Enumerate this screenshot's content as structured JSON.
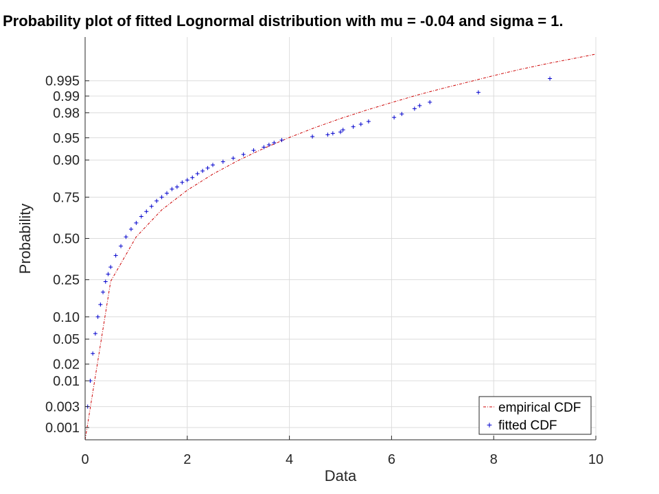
{
  "chart_data": {
    "type": "scatter",
    "title": "Probability plot of fitted Lognormal distribution with mu = -0.04 and sigma = 1.",
    "xlabel": "Data",
    "ylabel": "Probability",
    "xlim": [
      0,
      10
    ],
    "x_ticks": [
      0,
      2,
      4,
      6,
      8,
      10
    ],
    "y_scale": "probability",
    "y_ticks": [
      {
        "value": 0.001,
        "label": "0.001"
      },
      {
        "value": 0.003,
        "label": "0.003"
      },
      {
        "value": 0.01,
        "label": "0.01"
      },
      {
        "value": 0.02,
        "label": "0.02"
      },
      {
        "value": 0.05,
        "label": "0.05"
      },
      {
        "value": 0.1,
        "label": "0.10"
      },
      {
        "value": 0.25,
        "label": "0.25"
      },
      {
        "value": 0.5,
        "label": "0.50"
      },
      {
        "value": 0.75,
        "label": "0.75"
      },
      {
        "value": 0.9,
        "label": "0.90"
      },
      {
        "value": 0.95,
        "label": "0.95"
      },
      {
        "value": 0.98,
        "label": "0.98"
      },
      {
        "value": 0.99,
        "label": "0.99"
      },
      {
        "value": 0.995,
        "label": "0.995"
      }
    ],
    "grid": true,
    "legend_position": "bottom-right",
    "colors": {
      "empirical": "#cc0000",
      "fitted": "#0000cc",
      "grid": "#dcdcdc",
      "axis": "#262626"
    },
    "series": [
      {
        "name": "empirical CDF",
        "type": "line",
        "x": [
          0,
          0.5,
          1,
          1.5,
          2,
          2.5,
          3,
          3.5,
          4,
          4.5,
          5,
          5.5,
          6,
          6.5,
          7,
          7.5,
          8,
          8.5,
          9,
          9.5,
          10
        ],
        "y": [
          0.0005,
          0.2414,
          0.5104,
          0.6795,
          0.7847,
          0.8533,
          0.8988,
          0.9295,
          0.9505,
          0.9649,
          0.9749,
          0.9819,
          0.9868,
          0.9904,
          0.9929,
          0.9947,
          0.9961,
          0.9971,
          0.9978,
          0.9983,
          0.9987
        ]
      },
      {
        "name": "fitted CDF",
        "type": "scatter",
        "x": [
          0.05,
          0.1,
          0.15,
          0.2,
          0.25,
          0.3,
          0.35,
          0.4,
          0.45,
          0.5,
          0.6,
          0.7,
          0.8,
          0.9,
          1.0,
          1.1,
          1.2,
          1.3,
          1.4,
          1.5,
          1.6,
          1.7,
          1.8,
          1.9,
          2.0,
          2.1,
          2.2,
          2.3,
          2.4,
          2.5,
          2.7,
          2.9,
          3.1,
          3.3,
          3.5,
          3.6,
          3.7,
          3.85,
          4.45,
          4.75,
          4.85,
          5.0,
          5.05,
          5.25,
          5.4,
          5.55,
          6.05,
          6.2,
          6.45,
          6.55,
          6.75,
          7.7,
          9.1
        ],
        "y": [
          0.003,
          0.01,
          0.03,
          0.06,
          0.1,
          0.14,
          0.19,
          0.24,
          0.28,
          0.32,
          0.39,
          0.45,
          0.51,
          0.56,
          0.6,
          0.64,
          0.67,
          0.7,
          0.73,
          0.75,
          0.77,
          0.79,
          0.8,
          0.82,
          0.83,
          0.84,
          0.855,
          0.865,
          0.875,
          0.885,
          0.895,
          0.905,
          0.915,
          0.925,
          0.932,
          0.937,
          0.941,
          0.946,
          0.952,
          0.955,
          0.957,
          0.959,
          0.962,
          0.966,
          0.969,
          0.972,
          0.976,
          0.979,
          0.983,
          0.985,
          0.987,
          0.9915,
          0.9955
        ]
      }
    ]
  }
}
